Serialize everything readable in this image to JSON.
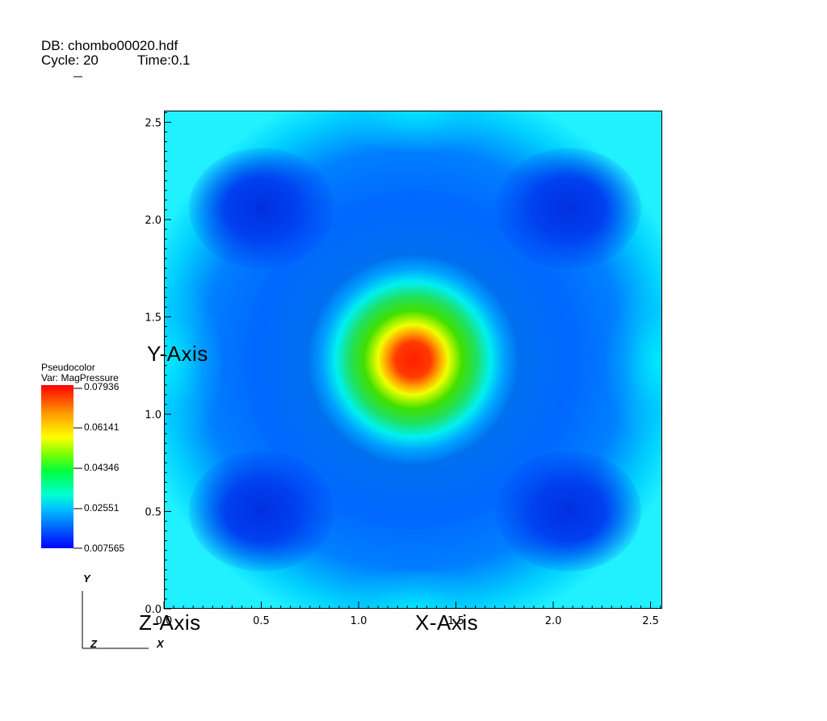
{
  "header": {
    "db": "DB: chombo00020.hdf",
    "cycle": "Cycle: 20",
    "time": "Time:0.1"
  },
  "legend": {
    "title": "Pseudocolor",
    "var": "Var: MagPressure",
    "labels": [
      "0.07936",
      "0.06141",
      "0.04346",
      "0.02551",
      "0.007565"
    ],
    "colors": [
      "#0000ff",
      "#00ffff",
      "#00ff00",
      "#ffff00",
      "#ff0000"
    ]
  },
  "axes": {
    "x_title": "X-Axis",
    "y_title": "Y-Axis",
    "z_title": "Z-Axis"
  },
  "triad": {
    "y": "Y",
    "z": "Z",
    "x": "X"
  },
  "chart_data": {
    "type": "heatmap",
    "title": "",
    "xlabel": "X-Axis",
    "ylabel": "Y-Axis",
    "xlim": [
      0.0,
      2.56
    ],
    "ylim": [
      0.0,
      2.56
    ],
    "x_ticks": [
      "0.0",
      "0.5",
      "1.0",
      "1.5",
      "2.0",
      "2.5"
    ],
    "y_ticks": [
      "0.0",
      "0.5",
      "1.0",
      "1.5",
      "2.0",
      "2.5"
    ],
    "x_tick_values": [
      0.0,
      0.5,
      1.0,
      1.5,
      2.0,
      2.5
    ],
    "y_tick_values": [
      0.0,
      0.5,
      1.0,
      1.5,
      2.0,
      2.5
    ],
    "variable": "MagPressure",
    "value_range": [
      0.007565,
      0.07936
    ],
    "peak": {
      "x": 1.28,
      "y": 1.28,
      "value": 0.07936
    },
    "colormap": "hot-to-cold (blue-cyan-green-yellow-red)"
  }
}
